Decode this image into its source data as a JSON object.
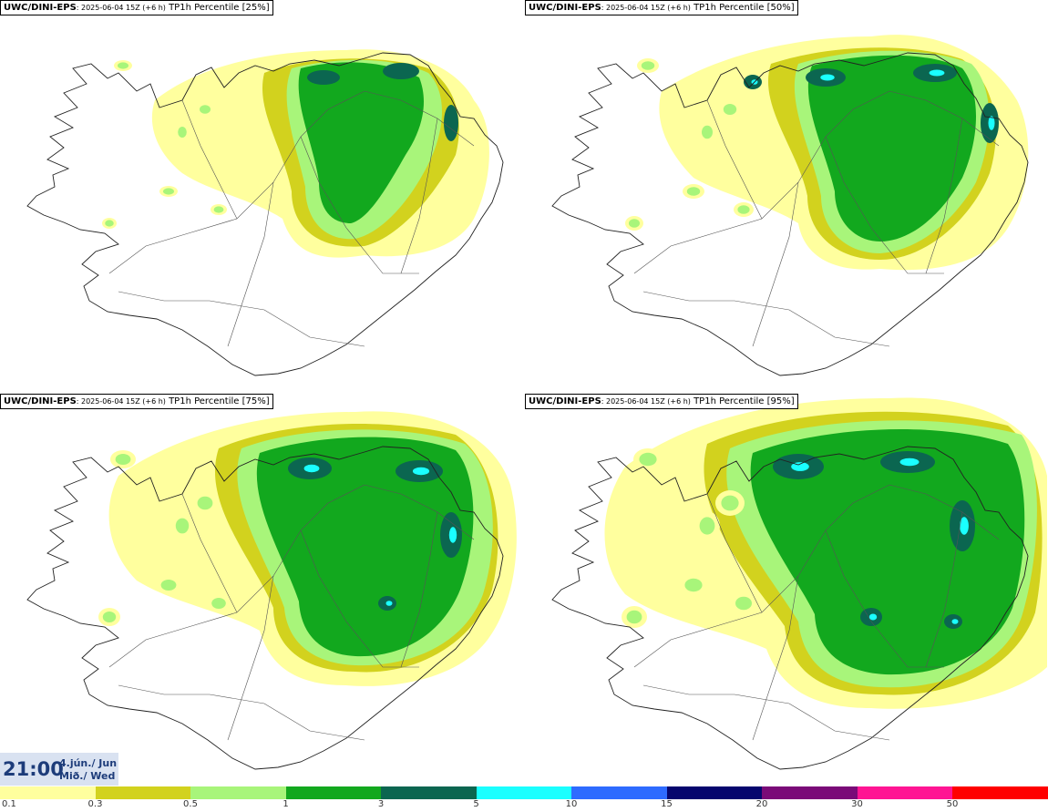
{
  "panels": [
    {
      "model": "UWC/DINI-EPS",
      "run": ": 2025-06-04 15Z (+6 h)",
      "field": " TP1h Percentile [25%]"
    },
    {
      "model": "UWC/DINI-EPS",
      "run": ": 2025-06-04 15Z (+6 h)",
      "field": " TP1h Percentile [50%]"
    },
    {
      "model": "UWC/DINI-EPS",
      "run": ": 2025-06-04 15Z (+6 h)",
      "field": " TP1h Percentile [75%]"
    },
    {
      "model": "UWC/DINI-EPS",
      "run": ": 2025-06-04 15Z (+6 h)",
      "field": " TP1h Percentile [95%]"
    }
  ],
  "valid_time": {
    "time": "21:00",
    "date_line1": "4.jún./ Jun",
    "date_line2": "Mið./ Wed"
  },
  "legend": {
    "labels": [
      "0.1",
      "0.3",
      "0.5",
      "1",
      "3",
      "5",
      "10",
      "15",
      "20",
      "30",
      "50"
    ],
    "colors": [
      "#ffff9e",
      "#d2d21e",
      "#a8f57a",
      "#12a81e",
      "#0b6650",
      "#1affff",
      "#2e6bff",
      "#06066e",
      "#7a0a78",
      "#ff1493",
      "#ff0000"
    ]
  }
}
